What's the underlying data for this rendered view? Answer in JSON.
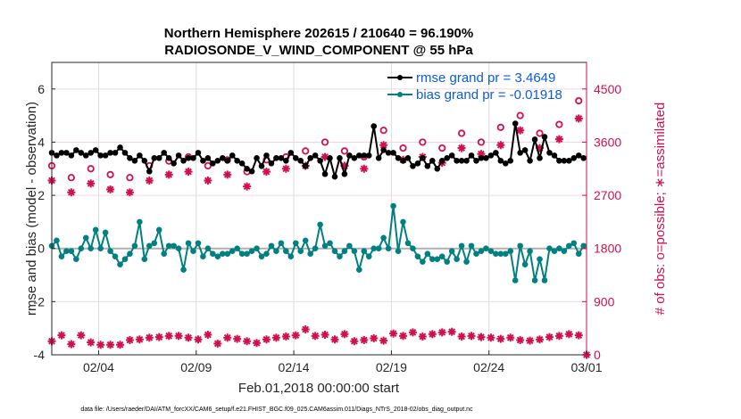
{
  "chart_data": {
    "type": "line",
    "title": "Northern Hemisphere 202615 / 210640 = 96.190%",
    "subtitle": "RADIOSONDE_V_WIND_COMPONENT @ 55 hPa",
    "xlabel": "Feb.01,2018 00:00:00 start",
    "ylabel": "rmse and bias (model - observation)",
    "y2label": "# of obs: o=possible; ∗=assimilated",
    "footnote": "data file: /Users/raeder/DAI/ATM_forcXX/CAM6_setup/f.e21.FHIST_BGC.f09_025.CAM6assim.011/Diags_NTrS_2018-02/obs_diag_output.nc",
    "xlim_days": [
      0.6,
      28
    ],
    "ylim": [
      -4,
      7
    ],
    "y2lim": [
      0,
      4950
    ],
    "xticks": [
      {
        "day": 3,
        "label": "02/04"
      },
      {
        "day": 8,
        "label": "02/09"
      },
      {
        "day": 13,
        "label": "02/14"
      },
      {
        "day": 18,
        "label": "02/19"
      },
      {
        "day": 23,
        "label": "02/24"
      },
      {
        "day": 28,
        "label": "03/01"
      }
    ],
    "yticks": [
      {
        "v": -4,
        "label": "-4"
      },
      {
        "v": -2,
        "label": "-2"
      },
      {
        "v": 0,
        "label": "0"
      },
      {
        "v": 2,
        "label": "2"
      },
      {
        "v": 4,
        "label": "4"
      },
      {
        "v": 6,
        "label": "6"
      }
    ],
    "y2ticks": [
      {
        "v": 0,
        "label": "0"
      },
      {
        "v": 900,
        "label": "900"
      },
      {
        "v": 1800,
        "label": "1800"
      },
      {
        "v": 2700,
        "label": "2700"
      },
      {
        "v": 3600,
        "label": "3600"
      },
      {
        "v": 4500,
        "label": "4500"
      }
    ],
    "grid": true,
    "legend": {
      "placement": "top-right",
      "entries": [
        {
          "label": "rmse grand pr = 3.4649",
          "color": "#000000"
        },
        {
          "label": "bias grand pr = -0.01918",
          "color": "#008080"
        }
      ]
    },
    "colors": {
      "rmse": "#000000",
      "bias": "#008080",
      "obs": "#d0104c",
      "zero": "#b0b0b0"
    },
    "series": [
      {
        "name": "rmse",
        "x_start_day": 0.6,
        "x_step_day": 0.25,
        "values": [
          3.6,
          3.5,
          3.6,
          3.6,
          3.5,
          3.7,
          3.6,
          3.5,
          3.6,
          3.7,
          3.5,
          3.5,
          3.6,
          3.6,
          3.8,
          3.6,
          3.4,
          3.3,
          3.5,
          3.3,
          2.9,
          3.4,
          3.4,
          3.6,
          3.4,
          3.2,
          3.5,
          3.3,
          3.4,
          3.4,
          3.6,
          3.3,
          3.4,
          3.2,
          3.3,
          3.4,
          3.3,
          3.5,
          3.3,
          3.2,
          3.0,
          2.9,
          3.4,
          3.1,
          3.5,
          3.2,
          3.4,
          3.4,
          3.3,
          3.6,
          3.4,
          3.3,
          3.1,
          3.4,
          3.5,
          3.3,
          2.8,
          3.4,
          2.7,
          3.4,
          2.8,
          3.5,
          3.4,
          3.5,
          3.5,
          3.5,
          4.6,
          3.4,
          3.7,
          3.6,
          3.6,
          3.4,
          3.3,
          3.4,
          3.1,
          3.2,
          3.4,
          3.1,
          3.3,
          3.0,
          3.3,
          3.4,
          3.5,
          3.3,
          3.3,
          3.3,
          3.5,
          3.3,
          3.4,
          3.4,
          3.5,
          3.6,
          3.3,
          3.2,
          3.3,
          4.7,
          3.6,
          3.7,
          3.3,
          4.1,
          3.4,
          4.2,
          3.6,
          3.5,
          3.3,
          3.3,
          3.3,
          3.4,
          3.5,
          3.4,
          3.4,
          3.4,
          3.5,
          3.1
        ]
      },
      {
        "name": "bias",
        "x_start_day": 0.6,
        "x_step_day": 0.25,
        "values": [
          0.1,
          0.3,
          -0.3,
          -0.1,
          -0.1,
          -0.4,
          0.0,
          0.4,
          0.0,
          0.7,
          0.0,
          0.6,
          -0.1,
          -0.3,
          -0.6,
          -0.4,
          -0.2,
          0.1,
          1.0,
          -0.4,
          0.1,
          0.2,
          0.7,
          -0.2,
          0.1,
          0.1,
          0.0,
          -0.8,
          0.2,
          -0.1,
          0.2,
          -0.3,
          0.0,
          -0.2,
          -0.3,
          -0.2,
          -0.2,
          -0.1,
          0.0,
          -0.2,
          -0.2,
          -0.1,
          0.0,
          -0.3,
          -0.2,
          0.1,
          -0.1,
          0.2,
          -0.1,
          -0.3,
          0.2,
          -0.1,
          0.3,
          -0.2,
          0.0,
          0.9,
          0.1,
          0.2,
          -0.1,
          -0.3,
          -0.1,
          0.1,
          -0.1,
          -0.8,
          -0.1,
          -0.3,
          0.0,
          0.0,
          0.4,
          0.0,
          1.6,
          -0.1,
          1.0,
          0.2,
          0.0,
          -0.3,
          -0.5,
          -0.2,
          -0.4,
          -0.4,
          -0.3,
          -0.5,
          -0.1,
          -0.4,
          0.1,
          -0.5,
          0.1,
          -0.2,
          -0.1,
          0.0,
          -0.1,
          -0.2,
          -0.2,
          -0.2,
          -0.1,
          -1.2,
          0.1,
          -0.6,
          -0.1,
          -1.2,
          -0.4,
          -1.2,
          0.0,
          -0.1,
          0.0,
          -0.1,
          0.1,
          0.2,
          -0.2,
          0.1,
          -0.3,
          0.0,
          0.3,
          -0.2,
          -0.3,
          -0.1,
          -0.4
        ]
      },
      {
        "name": "obs_possible",
        "axis": "right",
        "x_start_day": 0.6,
        "x_step_day": 1.0,
        "values": [
          3200,
          3000,
          3150,
          3050,
          3000,
          3200,
          3280,
          3350,
          3200,
          3300,
          3100,
          3300,
          3350,
          3450,
          3600,
          3450,
          3350,
          3800,
          3500,
          3600,
          3500,
          3750,
          3600,
          3850,
          4050,
          3750,
          3900,
          4300
        ]
      },
      {
        "name": "obs_assimilated",
        "axis": "right",
        "x_start_day": 0.6,
        "x_step_day": 1.0,
        "values": [
          2950,
          2750,
          2900,
          2800,
          2750,
          2950,
          3050,
          3100,
          2950,
          3050,
          2850,
          3100,
          3150,
          3200,
          3350,
          3200,
          3150,
          3550,
          3300,
          3350,
          3250,
          3500,
          3400,
          3550,
          3800,
          3500,
          3650,
          4000
        ]
      },
      {
        "name": "obs_low",
        "axis": "right",
        "x_start_day": 0.6,
        "x_step_day": 0.5,
        "values": [
          230,
          330,
          180,
          330,
          210,
          170,
          170,
          170,
          250,
          260,
          290,
          300,
          320,
          320,
          290,
          260,
          340,
          190,
          290,
          270,
          230,
          200,
          260,
          290,
          310,
          330,
          430,
          320,
          340,
          260,
          350,
          230,
          250,
          280,
          240,
          360,
          320,
          380,
          310,
          350,
          380,
          390,
          310,
          320,
          300,
          290,
          270,
          290,
          250,
          240,
          260,
          300,
          320,
          350,
          330
        ]
      }
    ]
  }
}
